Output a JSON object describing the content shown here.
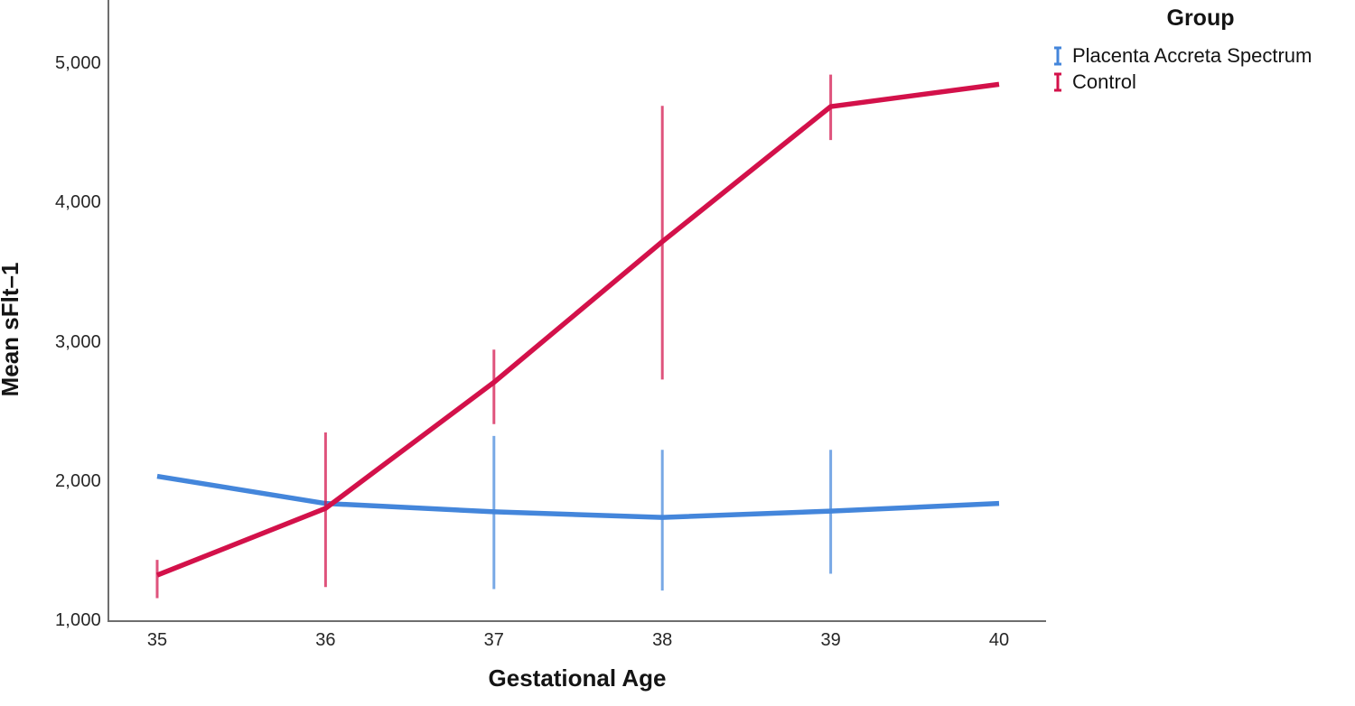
{
  "chart_data": {
    "type": "line",
    "title": "",
    "xlabel": "Gestational Age",
    "ylabel": "Mean sFlt–1",
    "x": [
      35,
      36,
      37,
      38,
      39,
      40
    ],
    "x_tick_labels": [
      "35",
      "36",
      "37",
      "38",
      "39",
      "40"
    ],
    "y_tick_values": [
      1000,
      2000,
      3000,
      4000,
      5000
    ],
    "y_tick_labels": [
      "1,000",
      "2,000",
      "3,000",
      "4,000",
      "5,000"
    ],
    "xlim": [
      34.7,
      40.3
    ],
    "ylim": [
      1000,
      5460
    ],
    "grid": false,
    "error_bar_note": "vertical 95% CI whiskers without caps",
    "axis_color": "#6e6e6e",
    "legend": {
      "title": "Group",
      "position": "top-right",
      "entries": [
        {
          "label": "Placenta Accreta Spectrum",
          "color": "#4486db"
        },
        {
          "label": "Control",
          "color": "#d3114a"
        }
      ]
    },
    "series": [
      {
        "name": "Placenta Accreta Spectrum",
        "color": "#4486db",
        "values": [
          2040,
          1845,
          1785,
          1745,
          1790,
          1845
        ],
        "ci_low": [
          null,
          null,
          1230,
          1220,
          1340,
          null
        ],
        "ci_high": [
          null,
          null,
          2330,
          2230,
          2230,
          null
        ]
      },
      {
        "name": "Control",
        "color": "#d3114a",
        "values": [
          1330,
          1810,
          2715,
          3725,
          4695,
          4855
        ],
        "ci_low": [
          1165,
          1245,
          2415,
          2735,
          4455,
          null
        ],
        "ci_high": [
          1440,
          2355,
          2950,
          4700,
          4925,
          null
        ]
      }
    ]
  }
}
